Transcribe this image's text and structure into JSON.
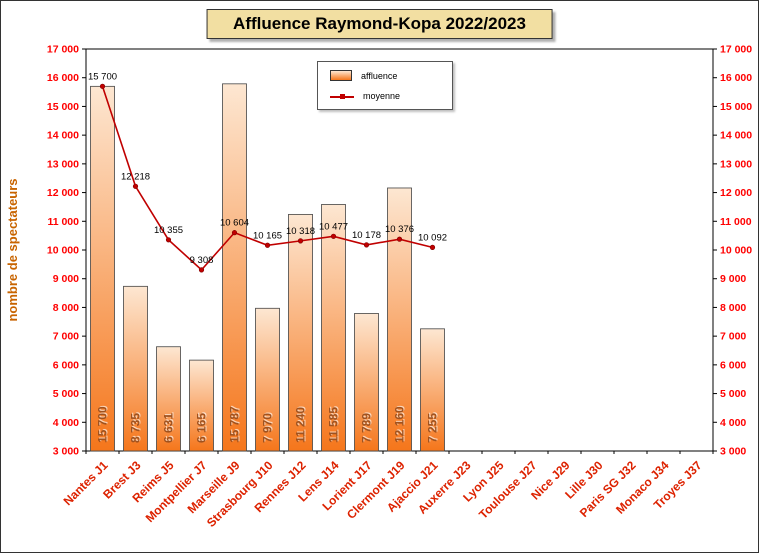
{
  "title": "Affluence Raymond-Kopa 2022/2023",
  "chart_data": {
    "type": "bar",
    "title": "Affluence Raymond-Kopa 2022/2023",
    "categories": [
      "Nantes J1",
      "Brest J3",
      "Reims J5",
      "Montpellier J7",
      "Marseille J9",
      "Strasbourg J10",
      "Rennes J12",
      "Lens J14",
      "Lorient J17",
      "Clermont J19",
      "Ajaccio J21",
      "Auxerre J23",
      "Lyon J25",
      "Toulouse J27",
      "Nice J29",
      "Lille J30",
      "Paris SG J32",
      "Monaco J34",
      "Troyes J37"
    ],
    "series": [
      {
        "name": "affluence",
        "type": "bar",
        "values": [
          15700,
          8735,
          6631,
          6165,
          15787,
          7970,
          11240,
          11585,
          7789,
          12160,
          7255,
          null,
          null,
          null,
          null,
          null,
          null,
          null,
          null
        ]
      },
      {
        "name": "moyenne",
        "type": "line",
        "values": [
          15700,
          12218,
          10355,
          9308,
          10604,
          10165,
          10318,
          10477,
          10178,
          10376,
          10092,
          null,
          null,
          null,
          null,
          null,
          null,
          null,
          null
        ]
      }
    ],
    "ylabel": "nombre de spectateurs",
    "ylim": [
      3000,
      17000
    ],
    "ytick_step": 1000,
    "grid": false,
    "legend_position": "top-center"
  },
  "colors": {
    "bar_top": "#FDE7D2",
    "bar_bottom": "#F5761B",
    "line": "#C00000",
    "axis_tick_labels": "#FF0000",
    "x_labels": "#DD2200",
    "bar_value_labels": "#A0521F",
    "y_axis_title": "#C86400",
    "title_background": "#F2DFA2"
  }
}
